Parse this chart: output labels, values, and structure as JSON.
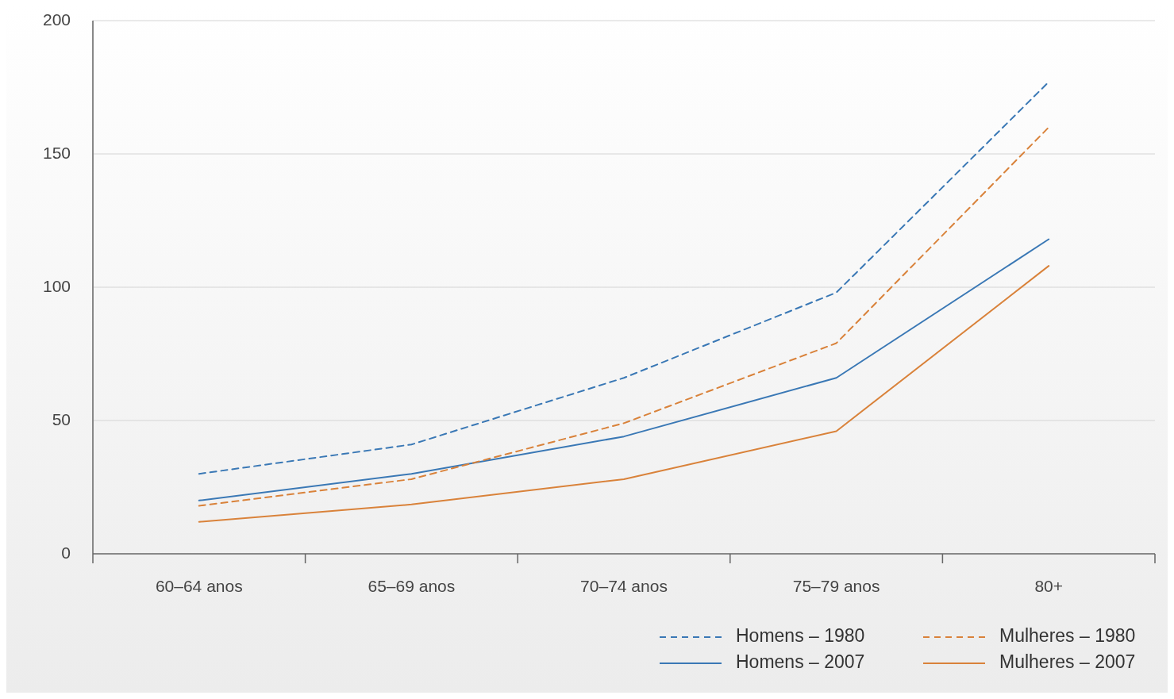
{
  "chart_data": {
    "type": "line",
    "categories": [
      "60–64 anos",
      "65–69 anos",
      "70–74 anos",
      "75–79 anos",
      "80+"
    ],
    "ylim": [
      0,
      200
    ],
    "yticks": [
      0,
      50,
      100,
      150,
      200
    ],
    "grid": "y",
    "legend": "bottom right",
    "marker": "none",
    "series": [
      {
        "name": "Homens – 1980",
        "color": "#3a78b5",
        "line_style": "dashed",
        "values": [
          30,
          41,
          66,
          98,
          177
        ]
      },
      {
        "name": "Homens – 2007",
        "color": "#3a78b5",
        "line_style": "solid",
        "values": [
          20,
          30,
          44,
          66,
          118
        ]
      },
      {
        "name": "Mulheres – 1980",
        "color": "#d9823a",
        "line_style": "dashed",
        "values": [
          18,
          28,
          49,
          79,
          160
        ]
      },
      {
        "name": "Mulheres – 2007",
        "color": "#d9823a",
        "line_style": "solid",
        "values": [
          12,
          18.5,
          28,
          46,
          108
        ]
      }
    ]
  }
}
